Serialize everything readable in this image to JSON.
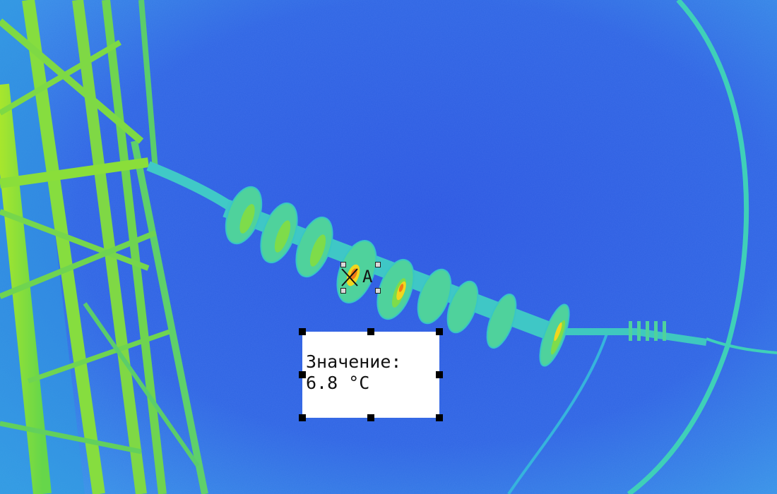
{
  "spot_marker": {
    "label": "A"
  },
  "readout": {
    "label": "Значение:",
    "value": "6.8 °C"
  },
  "palette": {
    "background": "#2f63e6",
    "cool": "#3aa6e8",
    "mid": "#37c9cf",
    "warm": "#8fe03a",
    "hot": "#f2d61e",
    "hottest": "#f07a17"
  }
}
